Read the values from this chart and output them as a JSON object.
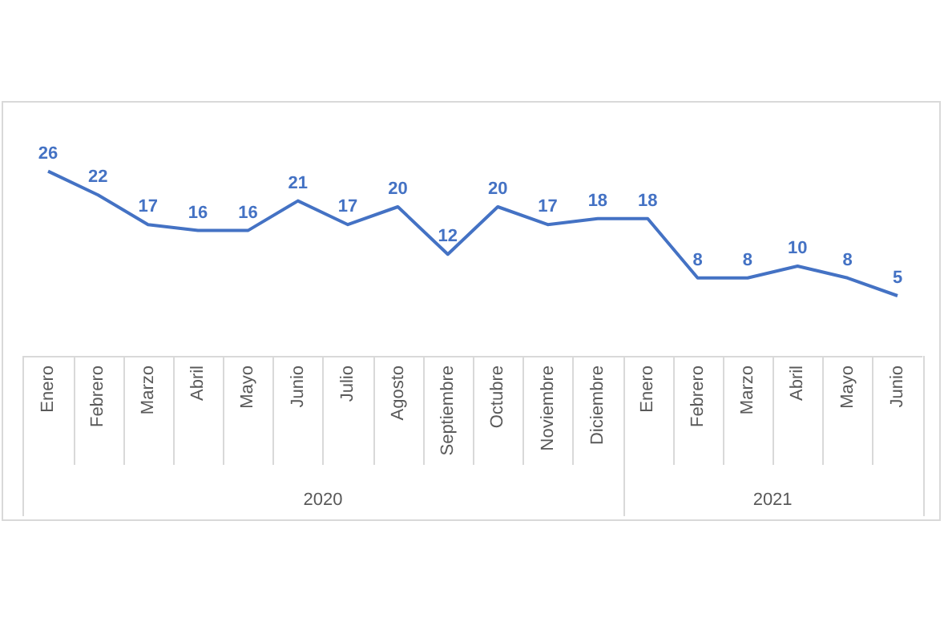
{
  "chart_data": {
    "type": "line",
    "categories": [
      "Enero",
      "Febrero",
      "Marzo",
      "Abril",
      "Mayo",
      "Junio",
      "Julio",
      "Agosto",
      "Septiembre",
      "Octubre",
      "Noviembre",
      "Diciembre",
      "Enero",
      "Febrero",
      "Marzo",
      "Abril",
      "Mayo",
      "Junio"
    ],
    "values": [
      26,
      22,
      17,
      16,
      16,
      21,
      17,
      20,
      12,
      20,
      17,
      18,
      18,
      8,
      8,
      10,
      8,
      5
    ],
    "color": "#4472c4",
    "data_labels": true,
    "marker": "none",
    "annotations": [
      "2020",
      "2021"
    ]
  }
}
